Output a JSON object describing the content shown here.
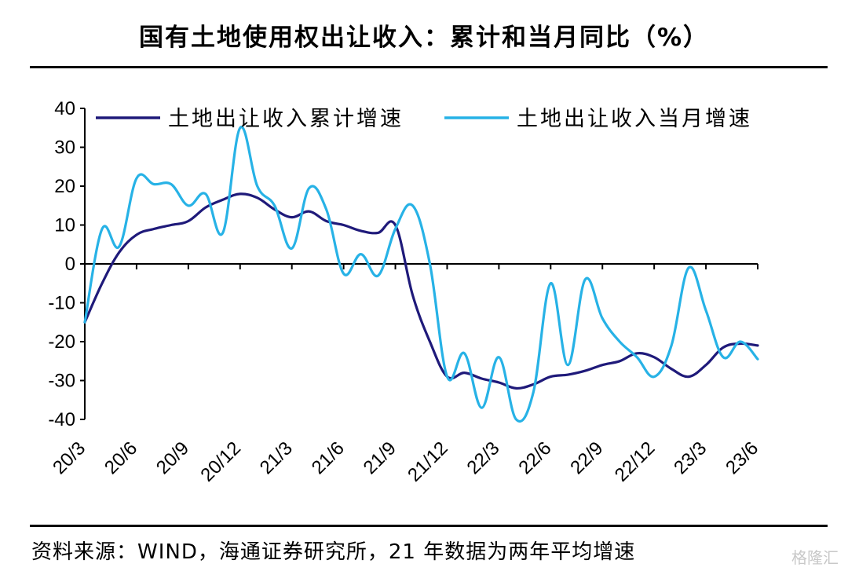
{
  "title": "国有土地使用权出让收入：累计和当月同比（%）",
  "source": "资料来源：WIND，海通证券研究所，21 年数据为两年平均增速",
  "watermark": "格隆汇",
  "chart_data": {
    "type": "line",
    "title": "国有土地使用权出让收入：累计和当月同比（%）",
    "xlabel": "",
    "ylabel": "",
    "ylim": [
      -40,
      40
    ],
    "yticks": [
      40,
      30,
      20,
      10,
      0,
      -10,
      -20,
      -30,
      -40
    ],
    "x": [
      "20/3",
      "20/4",
      "20/5",
      "20/6",
      "20/7",
      "20/8",
      "20/9",
      "20/10",
      "20/11",
      "20/12",
      "21/1",
      "21/2",
      "21/3",
      "21/4",
      "21/5",
      "21/6",
      "21/7",
      "21/8",
      "21/9",
      "21/10",
      "21/11",
      "21/12",
      "22/1",
      "22/2",
      "22/3",
      "22/4",
      "22/5",
      "22/6",
      "22/7",
      "22/8",
      "22/9",
      "22/10",
      "22/11",
      "22/12",
      "23/1",
      "23/2",
      "23/3",
      "23/4",
      "23/5",
      "23/6"
    ],
    "xtick_labels": [
      "20/3",
      "20/6",
      "20/9",
      "20/12",
      "21/3",
      "21/6",
      "21/9",
      "21/12",
      "22/3",
      "22/6",
      "22/9",
      "22/12",
      "23/3",
      "23/6"
    ],
    "legend": "top",
    "series": [
      {
        "name": "土地出让收入累计增速",
        "color": "#1f1a7a",
        "values": [
          -15,
          -5,
          3,
          7.5,
          9,
          10,
          11,
          14.5,
          16.5,
          18,
          17,
          14,
          12,
          13.5,
          11,
          10,
          8.5,
          8,
          10,
          -8,
          -20,
          -29,
          -28,
          -29.5,
          -30.5,
          -32,
          -31,
          -29,
          -28.5,
          -27.5,
          -26,
          -25,
          -23,
          -24,
          -27,
          -29,
          -26,
          -21.5,
          -20.5,
          -21
        ]
      },
      {
        "name": "土地出让收入当月增速",
        "color": "#27b2e6",
        "values": [
          -15,
          9,
          4.5,
          22,
          20.5,
          20.5,
          15,
          18,
          8,
          35,
          20,
          15,
          4,
          19.5,
          14,
          -2.5,
          2.5,
          -3,
          9,
          15,
          0,
          -29,
          -23,
          -37,
          -24,
          -40,
          -33,
          -5,
          -26,
          -4,
          -14,
          -20,
          -24,
          -29,
          -21,
          -1,
          -12,
          -24,
          -20,
          -24.5
        ]
      }
    ]
  }
}
